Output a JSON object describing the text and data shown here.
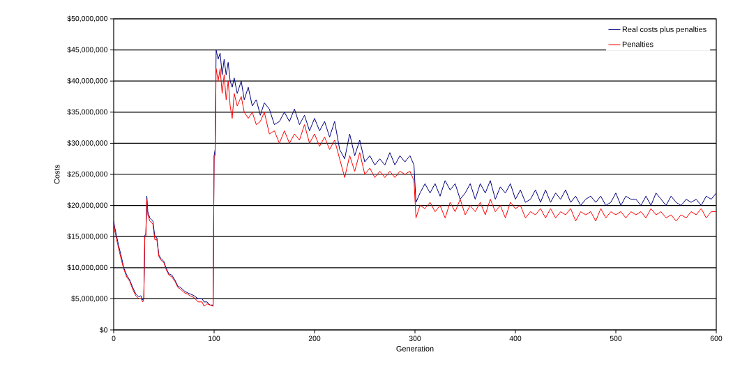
{
  "chart_data": {
    "type": "line",
    "xlabel": "Generation",
    "ylabel": "Costs",
    "xlim": [
      0,
      600
    ],
    "xticks": [
      0,
      100,
      200,
      300,
      400,
      500,
      600
    ],
    "ylim": [
      0,
      50000000
    ],
    "yticks": [
      {
        "value": 0,
        "label": "$0"
      },
      {
        "value": 5000000,
        "label": "$5,000,000"
      },
      {
        "value": 10000000,
        "label": "$10,000,000"
      },
      {
        "value": 15000000,
        "label": "$15,000,000"
      },
      {
        "value": 20000000,
        "label": "$20,000,000"
      },
      {
        "value": 25000000,
        "label": "$25,000,000"
      },
      {
        "value": 30000000,
        "label": "$30,000,000"
      },
      {
        "value": 35000000,
        "label": "$35,000,000"
      },
      {
        "value": 40000000,
        "label": "$40,000,000"
      },
      {
        "value": 45000000,
        "label": "$45,000,000"
      },
      {
        "value": 50000000,
        "label": "$50,000,000"
      }
    ],
    "grid": "y",
    "legend": "top right",
    "marker": "none",
    "line_style": "solid",
    "x": [
      0,
      1,
      3,
      5,
      8,
      10,
      13,
      16,
      19,
      22,
      25,
      27,
      29,
      30,
      31,
      32,
      33,
      34,
      36,
      39,
      41,
      43,
      45,
      47,
      50,
      52,
      55,
      58,
      61,
      64,
      67,
      70,
      73,
      76,
      80,
      84,
      88,
      90,
      93,
      96,
      99,
      100,
      101,
      102,
      104,
      106,
      108,
      110,
      112,
      114,
      116,
      118,
      120,
      123,
      127,
      130,
      134,
      138,
      142,
      146,
      150,
      155,
      160,
      165,
      170,
      175,
      180,
      185,
      190,
      195,
      200,
      205,
      210,
      215,
      220,
      225,
      230,
      235,
      240,
      245,
      250,
      255,
      260,
      265,
      270,
      275,
      280,
      285,
      290,
      295,
      299,
      301,
      305,
      310,
      315,
      320,
      325,
      330,
      335,
      340,
      345,
      350,
      355,
      360,
      365,
      370,
      375,
      380,
      385,
      390,
      395,
      400,
      405,
      410,
      415,
      420,
      425,
      430,
      435,
      440,
      445,
      450,
      455,
      460,
      465,
      470,
      475,
      480,
      485,
      490,
      495,
      500,
      505,
      510,
      515,
      520,
      525,
      530,
      535,
      540,
      545,
      550,
      555,
      560,
      565,
      570,
      575,
      580,
      585,
      590,
      595,
      600
    ],
    "series": [
      {
        "name": "Real costs plus penalties",
        "color": "#000080",
        "values": [
          17500000.0,
          16500000.0,
          15000000.0,
          13500000.0,
          11500000.0,
          10000000.0,
          8800000.0,
          8000000.0,
          6800000.0,
          5800000.0,
          5300000.0,
          5500000.0,
          4800000.0,
          5200000.0,
          15200000.0,
          15300000.0,
          21500000.0,
          19000000.0,
          18000000.0,
          17500000.0,
          15000000.0,
          14800000.0,
          12000000.0,
          11500000.0,
          11000000.0,
          10000000.0,
          9000000.0,
          8800000.0,
          8000000.0,
          7000000.0,
          6800000.0,
          6300000.0,
          6000000.0,
          5800000.0,
          5500000.0,
          5000000.0,
          5000000.0,
          4500000.0,
          4500000.0,
          4000000.0,
          4000000.0,
          28000000.0,
          29000000.0,
          45000000.0,
          43500000.0,
          44500000.0,
          41000000.0,
          43500000.0,
          41000000.0,
          43000000.0,
          40000000.0,
          39000000.0,
          40500000.0,
          38000000.0,
          40000000.0,
          37000000.0,
          39000000.0,
          36000000.0,
          37000000.0,
          34500000.0,
          36500000.0,
          35500000.0,
          33000000.0,
          33500000.0,
          35000000.0,
          33500000.0,
          35500000.0,
          33000000.0,
          34500000.0,
          32000000.0,
          34000000.0,
          32000000.0,
          33500000.0,
          31000000.0,
          33500000.0,
          29000000.0,
          27500000.0,
          31500000.0,
          28000000.0,
          30500000.0,
          27000000.0,
          28000000.0,
          26500000.0,
          27500000.0,
          26500000.0,
          28500000.0,
          26500000.0,
          28000000.0,
          27000000.0,
          28000000.0,
          26500000.0,
          20500000.0,
          22000000.0,
          23500000.0,
          22000000.0,
          23500000.0,
          21500000.0,
          24000000.0,
          22500000.0,
          23500000.0,
          21000000.0,
          22000000.0,
          23500000.0,
          21000000.0,
          23500000.0,
          22000000.0,
          24000000.0,
          21000000.0,
          23000000.0,
          22000000.0,
          23500000.0,
          21000000.0,
          22500000.0,
          20500000.0,
          21000000.0,
          22500000.0,
          20500000.0,
          22500000.0,
          20500000.0,
          22000000.0,
          21000000.0,
          22500000.0,
          20500000.0,
          21500000.0,
          20000000.0,
          21000000.0,
          21500000.0,
          20500000.0,
          21500000.0,
          20000000.0,
          20500000.0,
          22000000.0,
          20000000.0,
          21500000.0,
          21000000.0,
          21000000.0,
          20000000.0,
          21500000.0,
          20000000.0,
          22000000.0,
          21000000.0,
          20000000.0,
          21500000.0,
          20500000.0,
          20000000.0,
          21000000.0,
          20500000.0,
          21000000.0,
          20000000.0,
          21500000.0,
          21000000.0,
          22000000.0
        ]
      },
      {
        "name": "Penalties",
        "color": "#ff0000",
        "values": [
          17000000.0,
          16000000.0,
          14500000.0,
          13000000.0,
          11000000.0,
          9800000.0,
          8500000.0,
          7800000.0,
          6500000.0,
          5500000.0,
          5000000.0,
          5000000.0,
          4500000.0,
          5000000.0,
          15000000.0,
          15000000.0,
          21000000.0,
          18500000.0,
          17500000.0,
          17000000.0,
          14500000.0,
          14500000.0,
          11800000.0,
          11200000.0,
          10800000.0,
          9800000.0,
          8800000.0,
          8500000.0,
          7800000.0,
          6800000.0,
          6500000.0,
          6000000.0,
          5800000.0,
          5500000.0,
          5200000.0,
          4500000.0,
          4500000.0,
          3800000.0,
          4200000.0,
          4000000.0,
          3800000.0,
          28000000.0,
          28000000.0,
          42000000.0,
          40000000.0,
          42000000.0,
          38000000.0,
          41000000.0,
          37000000.0,
          40000000.0,
          36000000.0,
          34000000.0,
          38000000.0,
          36000000.0,
          37500000.0,
          35000000.0,
          34000000.0,
          35000000.0,
          33000000.0,
          33500000.0,
          35000000.0,
          31500000.0,
          32000000.0,
          30000000.0,
          32000000.0,
          30000000.0,
          31500000.0,
          30500000.0,
          33000000.0,
          30000000.0,
          31500000.0,
          29500000.0,
          31000000.0,
          29000000.0,
          30500000.0,
          27500000.0,
          24500000.0,
          28000000.0,
          25500000.0,
          28500000.0,
          25000000.0,
          26000000.0,
          24500000.0,
          25500000.0,
          24500000.0,
          25500000.0,
          24500000.0,
          25500000.0,
          25000000.0,
          25500000.0,
          24000000.0,
          18000000.0,
          20000000.0,
          19500000.0,
          20500000.0,
          19000000.0,
          20000000.0,
          18000000.0,
          20500000.0,
          19000000.0,
          21000000.0,
          18500000.0,
          20000000.0,
          19000000.0,
          20500000.0,
          18500000.0,
          21000000.0,
          19000000.0,
          20000000.0,
          18000000.0,
          20500000.0,
          19500000.0,
          20000000.0,
          18000000.0,
          19000000.0,
          18500000.0,
          19500000.0,
          18000000.0,
          19500000.0,
          18000000.0,
          19000000.0,
          18500000.0,
          19500000.0,
          17500000.0,
          19000000.0,
          18500000.0,
          19000000.0,
          17500000.0,
          19500000.0,
          18000000.0,
          19000000.0,
          18500000.0,
          19000000.0,
          18000000.0,
          19000000.0,
          18500000.0,
          19000000.0,
          18000000.0,
          19500000.0,
          18500000.0,
          19000000.0,
          18000000.0,
          18500000.0,
          17500000.0,
          18500000.0,
          18000000.0,
          19000000.0,
          18500000.0,
          19500000.0,
          18000000.0,
          19000000.0,
          19000000.0
        ]
      }
    ]
  }
}
